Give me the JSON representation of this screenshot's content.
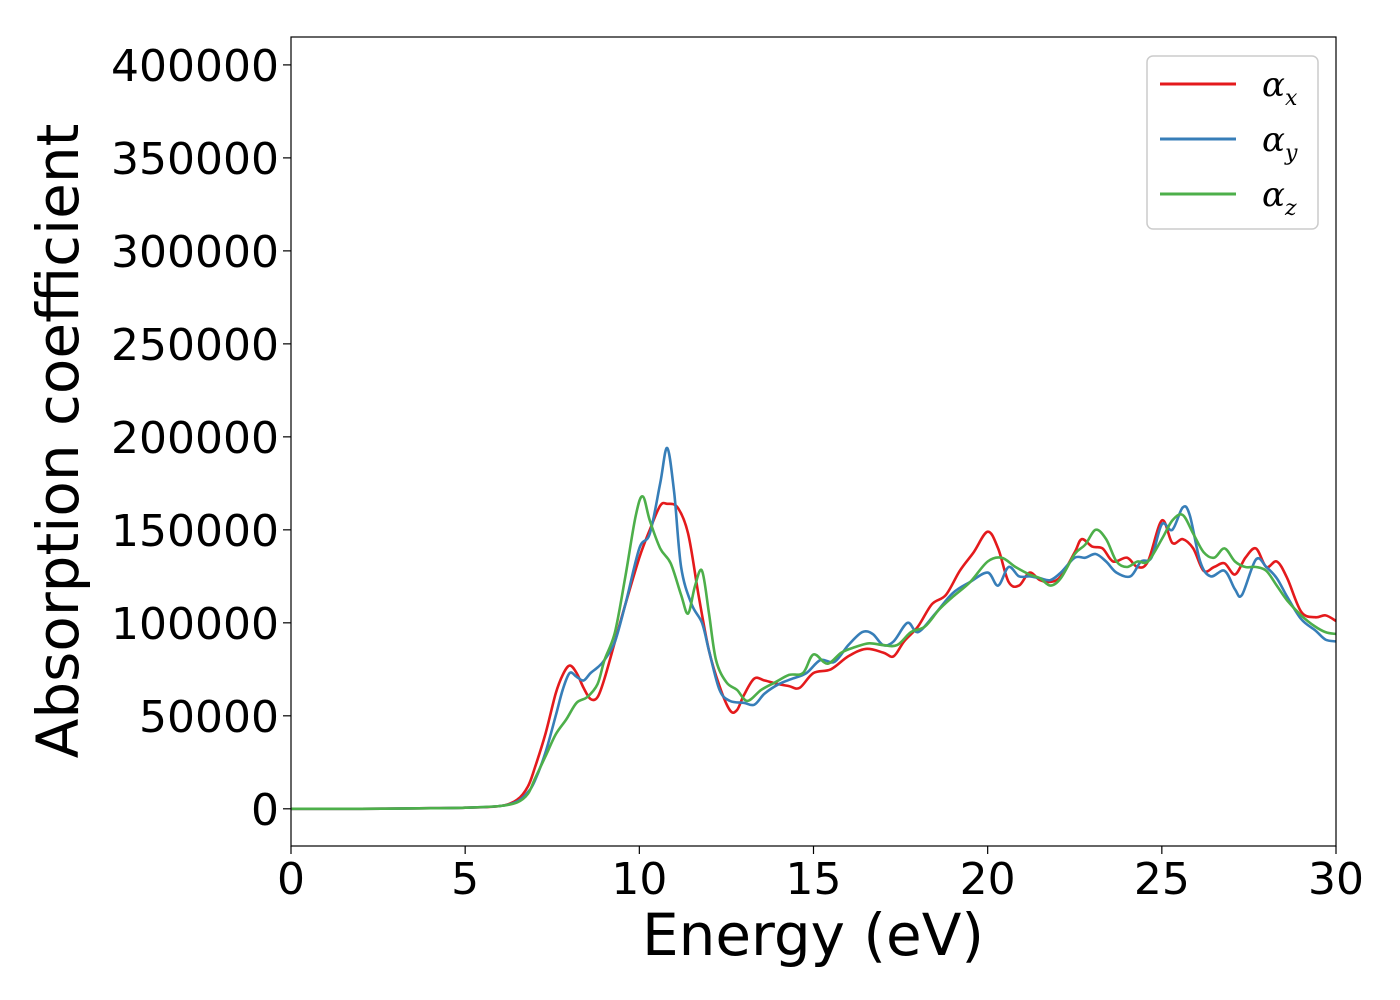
{
  "chart_data": {
    "type": "line",
    "title": "",
    "xlabel": "Energy (eV)",
    "ylabel": "Absorption coefficient",
    "xlim": [
      0,
      30
    ],
    "ylim": [
      -20000,
      415000
    ],
    "x_ticks": [
      0,
      5,
      10,
      15,
      20,
      25,
      30
    ],
    "y_ticks": [
      0,
      50000,
      100000,
      150000,
      200000,
      250000,
      300000,
      350000,
      400000
    ],
    "x_tick_labels": [
      "0",
      "5",
      "10",
      "15",
      "20",
      "25",
      "30"
    ],
    "y_tick_labels": [
      "0",
      "50000",
      "100000",
      "150000",
      "200000",
      "250000",
      "300000",
      "350000",
      "400000"
    ],
    "grid": false,
    "legend_position": "top-right",
    "series": [
      {
        "name": "αx",
        "symbol": "α",
        "subscript": "x",
        "color": "#e41a1c",
        "points": [
          [
            0,
            0
          ],
          [
            2,
            0
          ],
          [
            4,
            300
          ],
          [
            5,
            600
          ],
          [
            6,
            1500
          ],
          [
            6.5,
            5000
          ],
          [
            6.8,
            12000
          ],
          [
            7,
            22000
          ],
          [
            7.3,
            40000
          ],
          [
            7.6,
            62000
          ],
          [
            7.8,
            72000
          ],
          [
            8,
            77000
          ],
          [
            8.2,
            73000
          ],
          [
            8.4,
            65000
          ],
          [
            8.6,
            59000
          ],
          [
            8.8,
            60000
          ],
          [
            9,
            70000
          ],
          [
            9.3,
            90000
          ],
          [
            9.6,
            110000
          ],
          [
            10,
            135000
          ],
          [
            10.3,
            150000
          ],
          [
            10.6,
            163000
          ],
          [
            10.8,
            164000
          ],
          [
            11.1,
            162000
          ],
          [
            11.4,
            148000
          ],
          [
            11.7,
            115000
          ],
          [
            12,
            85000
          ],
          [
            12.3,
            66000
          ],
          [
            12.6,
            53000
          ],
          [
            12.8,
            53000
          ],
          [
            13,
            61000
          ],
          [
            13.3,
            70000
          ],
          [
            13.6,
            69000
          ],
          [
            14,
            67000
          ],
          [
            14.3,
            66000
          ],
          [
            14.6,
            65000
          ],
          [
            15,
            73000
          ],
          [
            15.5,
            75000
          ],
          [
            16,
            82000
          ],
          [
            16.5,
            86000
          ],
          [
            17,
            84000
          ],
          [
            17.3,
            82000
          ],
          [
            17.6,
            90000
          ],
          [
            18,
            98000
          ],
          [
            18.4,
            110000
          ],
          [
            18.8,
            115000
          ],
          [
            19.2,
            128000
          ],
          [
            19.6,
            138000
          ],
          [
            20,
            149000
          ],
          [
            20.3,
            140000
          ],
          [
            20.6,
            122000
          ],
          [
            20.9,
            120000
          ],
          [
            21.2,
            127000
          ],
          [
            21.5,
            123000
          ],
          [
            21.8,
            122000
          ],
          [
            22.1,
            125000
          ],
          [
            22.5,
            138000
          ],
          [
            22.7,
            145000
          ],
          [
            23,
            141000
          ],
          [
            23.3,
            140000
          ],
          [
            23.6,
            133000
          ],
          [
            24,
            135000
          ],
          [
            24.3,
            130000
          ],
          [
            24.6,
            133000
          ],
          [
            25,
            155000
          ],
          [
            25.3,
            143000
          ],
          [
            25.6,
            145000
          ],
          [
            25.9,
            140000
          ],
          [
            26.2,
            128000
          ],
          [
            26.5,
            130000
          ],
          [
            26.8,
            132000
          ],
          [
            27.1,
            126000
          ],
          [
            27.4,
            135000
          ],
          [
            27.7,
            140000
          ],
          [
            28,
            130000
          ],
          [
            28.3,
            133000
          ],
          [
            28.6,
            124000
          ],
          [
            29,
            106000
          ],
          [
            29.4,
            103000
          ],
          [
            29.7,
            104000
          ],
          [
            30,
            101000
          ]
        ]
      },
      {
        "name": "αy",
        "symbol": "α",
        "subscript": "y",
        "color": "#377eb8",
        "points": [
          [
            0,
            0
          ],
          [
            2,
            0
          ],
          [
            4,
            300
          ],
          [
            5,
            600
          ],
          [
            6,
            1500
          ],
          [
            6.5,
            4000
          ],
          [
            6.8,
            9000
          ],
          [
            7,
            15000
          ],
          [
            7.3,
            30000
          ],
          [
            7.6,
            50000
          ],
          [
            7.8,
            64000
          ],
          [
            8,
            73000
          ],
          [
            8.2,
            71000
          ],
          [
            8.4,
            69000
          ],
          [
            8.6,
            73000
          ],
          [
            8.8,
            76000
          ],
          [
            9,
            80000
          ],
          [
            9.3,
            90000
          ],
          [
            9.6,
            110000
          ],
          [
            10,
            140000
          ],
          [
            10.3,
            148000
          ],
          [
            10.6,
            175000
          ],
          [
            10.8,
            194000
          ],
          [
            11,
            170000
          ],
          [
            11.2,
            130000
          ],
          [
            11.5,
            110000
          ],
          [
            11.8,
            100000
          ],
          [
            12,
            85000
          ],
          [
            12.3,
            64000
          ],
          [
            12.6,
            58000
          ],
          [
            13,
            57000
          ],
          [
            13.3,
            56000
          ],
          [
            13.6,
            62000
          ],
          [
            14,
            67000
          ],
          [
            14.4,
            70000
          ],
          [
            14.8,
            73000
          ],
          [
            15.2,
            80000
          ],
          [
            15.6,
            79000
          ],
          [
            16,
            88000
          ],
          [
            16.4,
            95000
          ],
          [
            16.7,
            94000
          ],
          [
            17,
            88000
          ],
          [
            17.3,
            90000
          ],
          [
            17.7,
            100000
          ],
          [
            18,
            95000
          ],
          [
            18.5,
            105000
          ],
          [
            19,
            116000
          ],
          [
            19.5,
            122000
          ],
          [
            20,
            127000
          ],
          [
            20.3,
            120000
          ],
          [
            20.6,
            130000
          ],
          [
            20.9,
            125000
          ],
          [
            21.2,
            125000
          ],
          [
            21.5,
            124000
          ],
          [
            21.8,
            123000
          ],
          [
            22.1,
            127000
          ],
          [
            22.5,
            135000
          ],
          [
            22.8,
            135000
          ],
          [
            23.1,
            137000
          ],
          [
            23.4,
            133000
          ],
          [
            23.7,
            127000
          ],
          [
            24.1,
            125000
          ],
          [
            24.4,
            133000
          ],
          [
            24.7,
            135000
          ],
          [
            25,
            153000
          ],
          [
            25.3,
            150000
          ],
          [
            25.6,
            162000
          ],
          [
            25.8,
            158000
          ],
          [
            26.1,
            133000
          ],
          [
            26.4,
            125000
          ],
          [
            26.8,
            128000
          ],
          [
            27.1,
            118000
          ],
          [
            27.3,
            115000
          ],
          [
            27.7,
            134000
          ],
          [
            28,
            130000
          ],
          [
            28.3,
            124000
          ],
          [
            28.6,
            114000
          ],
          [
            29,
            102000
          ],
          [
            29.4,
            96000
          ],
          [
            29.7,
            91000
          ],
          [
            30,
            90000
          ]
        ]
      },
      {
        "name": "αz",
        "symbol": "α",
        "subscript": "z",
        "color": "#4daf4a",
        "points": [
          [
            0,
            0
          ],
          [
            2,
            0
          ],
          [
            4,
            300
          ],
          [
            5,
            600
          ],
          [
            6,
            1500
          ],
          [
            6.5,
            3500
          ],
          [
            6.8,
            8000
          ],
          [
            7,
            16000
          ],
          [
            7.3,
            28000
          ],
          [
            7.6,
            40000
          ],
          [
            7.9,
            48000
          ],
          [
            8.2,
            57000
          ],
          [
            8.5,
            60000
          ],
          [
            8.8,
            67000
          ],
          [
            9,
            80000
          ],
          [
            9.3,
            95000
          ],
          [
            9.6,
            125000
          ],
          [
            9.9,
            158000
          ],
          [
            10.1,
            168000
          ],
          [
            10.3,
            155000
          ],
          [
            10.6,
            140000
          ],
          [
            10.9,
            132000
          ],
          [
            11.2,
            115000
          ],
          [
            11.4,
            105000
          ],
          [
            11.6,
            120000
          ],
          [
            11.8,
            128000
          ],
          [
            12,
            105000
          ],
          [
            12.2,
            80000
          ],
          [
            12.5,
            68000
          ],
          [
            12.8,
            64000
          ],
          [
            13.1,
            58000
          ],
          [
            13.5,
            64000
          ],
          [
            13.9,
            68000
          ],
          [
            14.3,
            72000
          ],
          [
            14.7,
            73000
          ],
          [
            15,
            83000
          ],
          [
            15.4,
            78000
          ],
          [
            15.8,
            84000
          ],
          [
            16.2,
            87000
          ],
          [
            16.6,
            89000
          ],
          [
            17,
            88000
          ],
          [
            17.4,
            88000
          ],
          [
            17.8,
            95000
          ],
          [
            18.2,
            98000
          ],
          [
            18.6,
            107000
          ],
          [
            19,
            114000
          ],
          [
            19.5,
            122000
          ],
          [
            20,
            133000
          ],
          [
            20.4,
            135000
          ],
          [
            20.8,
            130000
          ],
          [
            21.2,
            126000
          ],
          [
            21.5,
            124000
          ],
          [
            21.8,
            120000
          ],
          [
            22.1,
            124000
          ],
          [
            22.5,
            137000
          ],
          [
            22.8,
            142000
          ],
          [
            23.1,
            150000
          ],
          [
            23.4,
            145000
          ],
          [
            23.7,
            133000
          ],
          [
            24,
            130000
          ],
          [
            24.3,
            133000
          ],
          [
            24.6,
            133000
          ],
          [
            25,
            145000
          ],
          [
            25.3,
            155000
          ],
          [
            25.6,
            158000
          ],
          [
            25.9,
            148000
          ],
          [
            26.2,
            138000
          ],
          [
            26.5,
            135000
          ],
          [
            26.8,
            140000
          ],
          [
            27.1,
            133000
          ],
          [
            27.4,
            130000
          ],
          [
            27.7,
            130000
          ],
          [
            28,
            128000
          ],
          [
            28.3,
            120000
          ],
          [
            28.6,
            112000
          ],
          [
            29,
            104000
          ],
          [
            29.4,
            98000
          ],
          [
            29.7,
            95000
          ],
          [
            30,
            94000
          ]
        ]
      }
    ]
  }
}
